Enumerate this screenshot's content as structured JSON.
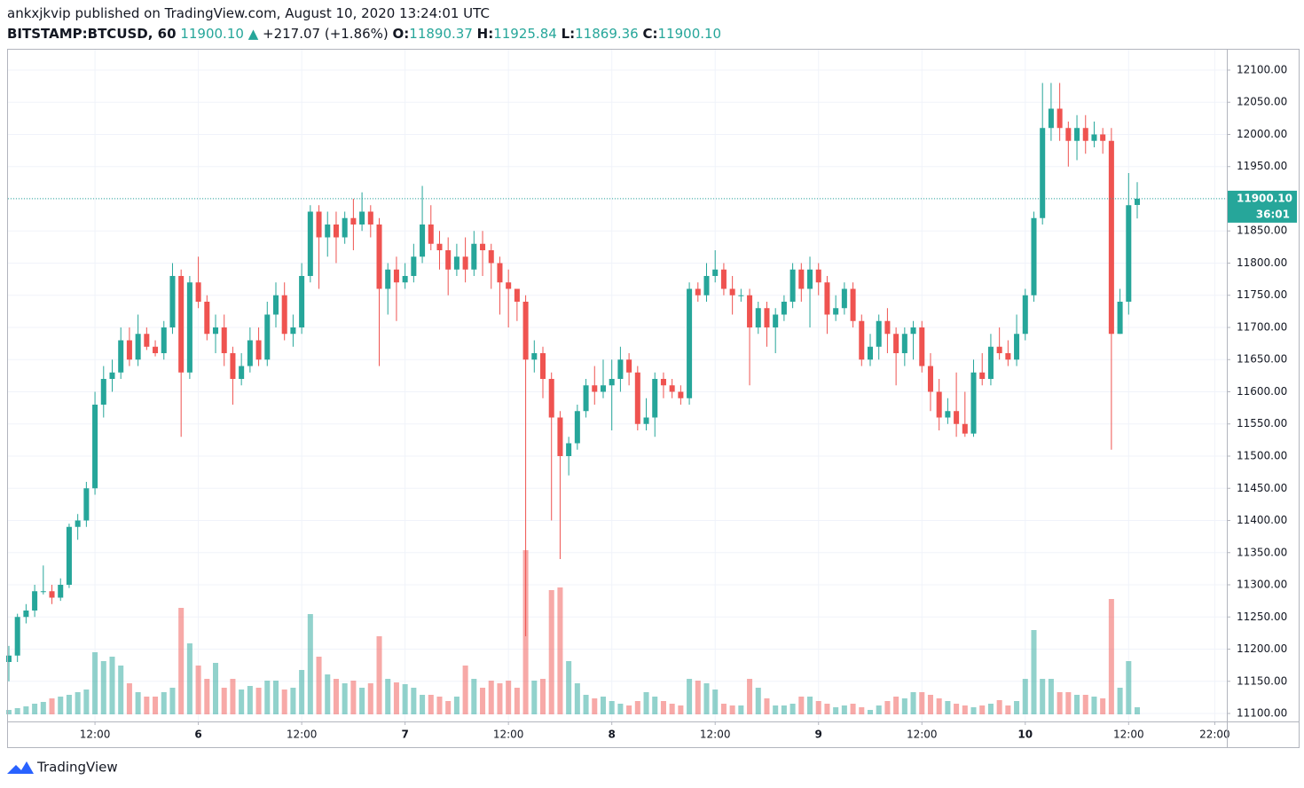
{
  "header": {
    "publisher": "ankxjkvip published on TradingView.com, August 10, 2020 13:24:01 UTC",
    "symbol": "BITSTAMP:BTCUSD, 60",
    "price": "11900.10",
    "change": "+217.07 (+1.86%)",
    "open_label": "O:",
    "open": "11890.37",
    "high_label": "H:",
    "high": "11925.84",
    "low_label": "L:",
    "low": "11869.36",
    "close_label": "C:",
    "close": "11900.10"
  },
  "footer": {
    "brand": "TradingView"
  },
  "chart_data": {
    "type": "candlestick",
    "up_color": "#26a69a",
    "down_color": "#ef5350",
    "current_price_label": "11900.10",
    "countdown": "36:01",
    "ylim": [
      11087.6,
      12131.7
    ],
    "yticks": [
      {
        "value": 11100,
        "label": "11100.00"
      },
      {
        "value": 11150,
        "label": "11150.00"
      },
      {
        "value": 11200,
        "label": "11200.00"
      },
      {
        "value": 11250,
        "label": "11250.00"
      },
      {
        "value": 11300,
        "label": "11300.00"
      },
      {
        "value": 11350,
        "label": "11350.00"
      },
      {
        "value": 11400,
        "label": "11400.00"
      },
      {
        "value": 11450,
        "label": "11450.00"
      },
      {
        "value": 11500,
        "label": "11500.00"
      },
      {
        "value": 11550,
        "label": "11550.00"
      },
      {
        "value": 11600,
        "label": "11600.00"
      },
      {
        "value": 11650,
        "label": "11650.00"
      },
      {
        "value": 11700,
        "label": "11700.00"
      },
      {
        "value": 11750,
        "label": "11750.00"
      },
      {
        "value": 11800,
        "label": "11800.00"
      },
      {
        "value": 11850,
        "label": "11850.00"
      },
      {
        "value": 11900,
        "label": "11900.00"
      },
      {
        "value": 11950,
        "label": "11950.00"
      },
      {
        "value": 12000,
        "label": "12000.00"
      },
      {
        "value": 12050,
        "label": "12050.00"
      },
      {
        "value": 12100,
        "label": "12100.00"
      }
    ],
    "xlim": [
      -0.1,
      141.4
    ],
    "xticks": [
      {
        "value": 10,
        "label": "12:00"
      },
      {
        "value": 22,
        "label": "6"
      },
      {
        "value": 34,
        "label": "12:00"
      },
      {
        "value": 46,
        "label": "7"
      },
      {
        "value": 58,
        "label": "12:00"
      },
      {
        "value": 70,
        "label": "8"
      },
      {
        "value": 82,
        "label": "12:00"
      },
      {
        "value": 94,
        "label": "9"
      },
      {
        "value": 106,
        "label": "12:00"
      },
      {
        "value": 118,
        "label": "10"
      },
      {
        "value": 130,
        "label": "12:00"
      },
      {
        "value": 140,
        "label": "22:00"
      }
    ],
    "grid": true,
    "ohlc": [
      [
        11180,
        11205,
        11150,
        11190
      ],
      [
        11190,
        11255,
        11180,
        11250
      ],
      [
        11250,
        11270,
        11240,
        11260
      ],
      [
        11260,
        11300,
        11250,
        11290
      ],
      [
        11290,
        11330,
        11285,
        11290
      ],
      [
        11290,
        11300,
        11270,
        11280
      ],
      [
        11280,
        11310,
        11275,
        11300
      ],
      [
        11300,
        11395,
        11295,
        11390
      ],
      [
        11390,
        11410,
        11370,
        11400
      ],
      [
        11400,
        11460,
        11390,
        11450
      ],
      [
        11450,
        11600,
        11440,
        11580
      ],
      [
        11580,
        11640,
        11560,
        11620
      ],
      [
        11620,
        11650,
        11600,
        11630
      ],
      [
        11630,
        11700,
        11620,
        11680
      ],
      [
        11680,
        11700,
        11640,
        11650
      ],
      [
        11650,
        11720,
        11640,
        11690
      ],
      [
        11690,
        11700,
        11665,
        11670
      ],
      [
        11670,
        11680,
        11655,
        11660
      ],
      [
        11660,
        11710,
        11650,
        11700
      ],
      [
        11700,
        11800,
        11690,
        11780
      ],
      [
        11780,
        11790,
        11530,
        11630
      ],
      [
        11630,
        11780,
        11620,
        11770
      ],
      [
        11770,
        11810,
        11730,
        11740
      ],
      [
        11740,
        11750,
        11680,
        11690
      ],
      [
        11690,
        11720,
        11660,
        11700
      ],
      [
        11700,
        11720,
        11640,
        11660
      ],
      [
        11660,
        11670,
        11580,
        11620
      ],
      [
        11620,
        11660,
        11610,
        11640
      ],
      [
        11640,
        11700,
        11630,
        11680
      ],
      [
        11680,
        11700,
        11640,
        11650
      ],
      [
        11650,
        11740,
        11640,
        11720
      ],
      [
        11720,
        11770,
        11700,
        11750
      ],
      [
        11750,
        11770,
        11680,
        11690
      ],
      [
        11690,
        11720,
        11670,
        11700
      ],
      [
        11700,
        11800,
        11690,
        11780
      ],
      [
        11780,
        11890,
        11770,
        11880
      ],
      [
        11880,
        11890,
        11760,
        11840
      ],
      [
        11840,
        11880,
        11810,
        11860
      ],
      [
        11860,
        11880,
        11800,
        11840
      ],
      [
        11840,
        11880,
        11830,
        11870
      ],
      [
        11870,
        11900,
        11820,
        11860
      ],
      [
        11860,
        11910,
        11850,
        11880
      ],
      [
        11880,
        11890,
        11840,
        11860
      ],
      [
        11860,
        11870,
        11640,
        11760
      ],
      [
        11760,
        11800,
        11720,
        11790
      ],
      [
        11790,
        11810,
        11710,
        11770
      ],
      [
        11770,
        11800,
        11760,
        11780
      ],
      [
        11780,
        11830,
        11770,
        11810
      ],
      [
        11810,
        11920,
        11800,
        11860
      ],
      [
        11860,
        11890,
        11820,
        11830
      ],
      [
        11830,
        11850,
        11790,
        11820
      ],
      [
        11820,
        11840,
        11750,
        11790
      ],
      [
        11790,
        11830,
        11780,
        11810
      ],
      [
        11810,
        11840,
        11770,
        11790
      ],
      [
        11790,
        11850,
        11780,
        11830
      ],
      [
        11830,
        11850,
        11780,
        11820
      ],
      [
        11820,
        11830,
        11760,
        11800
      ],
      [
        11800,
        11810,
        11720,
        11770
      ],
      [
        11770,
        11790,
        11700,
        11760
      ],
      [
        11760,
        11760,
        11710,
        11740
      ],
      [
        11740,
        11750,
        11220,
        11650
      ],
      [
        11650,
        11680,
        11630,
        11660
      ],
      [
        11660,
        11670,
        11590,
        11620
      ],
      [
        11620,
        11630,
        11400,
        11560
      ],
      [
        11560,
        11570,
        11340,
        11500
      ],
      [
        11500,
        11530,
        11470,
        11520
      ],
      [
        11520,
        11580,
        11510,
        11570
      ],
      [
        11570,
        11620,
        11560,
        11610
      ],
      [
        11610,
        11640,
        11580,
        11600
      ],
      [
        11600,
        11650,
        11590,
        11610
      ],
      [
        11610,
        11650,
        11540,
        11620
      ],
      [
        11620,
        11670,
        11600,
        11650
      ],
      [
        11650,
        11660,
        11610,
        11630
      ],
      [
        11630,
        11640,
        11540,
        11550
      ],
      [
        11550,
        11590,
        11540,
        11560
      ],
      [
        11560,
        11630,
        11530,
        11620
      ],
      [
        11620,
        11630,
        11590,
        11610
      ],
      [
        11610,
        11620,
        11590,
        11600
      ],
      [
        11600,
        11610,
        11580,
        11590
      ],
      [
        11590,
        11770,
        11580,
        11760
      ],
      [
        11760,
        11770,
        11740,
        11750
      ],
      [
        11750,
        11800,
        11740,
        11780
      ],
      [
        11780,
        11820,
        11770,
        11790
      ],
      [
        11790,
        11800,
        11750,
        11760
      ],
      [
        11760,
        11780,
        11720,
        11750
      ],
      [
        11750,
        11760,
        11740,
        11750
      ],
      [
        11750,
        11760,
        11610,
        11700
      ],
      [
        11700,
        11740,
        11690,
        11730
      ],
      [
        11730,
        11740,
        11670,
        11700
      ],
      [
        11700,
        11730,
        11660,
        11720
      ],
      [
        11720,
        11750,
        11710,
        11740
      ],
      [
        11740,
        11800,
        11730,
        11790
      ],
      [
        11790,
        11800,
        11740,
        11760
      ],
      [
        11760,
        11810,
        11700,
        11790
      ],
      [
        11790,
        11800,
        11750,
        11770
      ],
      [
        11770,
        11780,
        11690,
        11720
      ],
      [
        11720,
        11750,
        11710,
        11730
      ],
      [
        11730,
        11770,
        11720,
        11760
      ],
      [
        11760,
        11770,
        11700,
        11710
      ],
      [
        11710,
        11720,
        11640,
        11650
      ],
      [
        11650,
        11690,
        11640,
        11670
      ],
      [
        11670,
        11720,
        11650,
        11710
      ],
      [
        11710,
        11730,
        11660,
        11690
      ],
      [
        11690,
        11700,
        11610,
        11660
      ],
      [
        11660,
        11700,
        11640,
        11690
      ],
      [
        11690,
        11710,
        11650,
        11700
      ],
      [
        11700,
        11710,
        11630,
        11640
      ],
      [
        11640,
        11660,
        11570,
        11600
      ],
      [
        11600,
        11620,
        11540,
        11560
      ],
      [
        11560,
        11590,
        11550,
        11570
      ],
      [
        11570,
        11630,
        11530,
        11550
      ],
      [
        11550,
        11600,
        11530,
        11535
      ],
      [
        11535,
        11650,
        11530,
        11630
      ],
      [
        11630,
        11660,
        11610,
        11620
      ],
      [
        11620,
        11690,
        11610,
        11670
      ],
      [
        11670,
        11700,
        11650,
        11660
      ],
      [
        11660,
        11680,
        11640,
        11650
      ],
      [
        11650,
        11720,
        11640,
        11690
      ],
      [
        11690,
        11760,
        11680,
        11750
      ],
      [
        11750,
        11880,
        11740,
        11870
      ],
      [
        11870,
        12080,
        11860,
        12010
      ],
      [
        12010,
        12080,
        11990,
        12040
      ],
      [
        12040,
        12080,
        11990,
        12010
      ],
      [
        12010,
        12020,
        11950,
        11990
      ],
      [
        11990,
        12030,
        11960,
        12010
      ],
      [
        12010,
        12030,
        11970,
        11990
      ],
      [
        11990,
        12020,
        11980,
        12000
      ],
      [
        12000,
        12010,
        11970,
        11990
      ],
      [
        11990,
        12010,
        11510,
        11690
      ],
      [
        11690,
        11760,
        11690,
        11740
      ],
      [
        11740,
        11940,
        11720,
        11890
      ],
      [
        11890.37,
        11925.84,
        11869.36,
        11900.1
      ]
    ],
    "volume": [
      5,
      7,
      9,
      12,
      14,
      18,
      20,
      22,
      25,
      28,
      70,
      60,
      65,
      55,
      35,
      25,
      20,
      20,
      25,
      30,
      120,
      80,
      55,
      40,
      58,
      30,
      40,
      28,
      32,
      30,
      38,
      38,
      28,
      30,
      50,
      113,
      65,
      45,
      40,
      35,
      38,
      30,
      35,
      88,
      40,
      36,
      34,
      30,
      22,
      22,
      20,
      15,
      20,
      55,
      40,
      30,
      38,
      35,
      38,
      30,
      185,
      38,
      40,
      140,
      143,
      60,
      35,
      22,
      18,
      20,
      15,
      12,
      10,
      15,
      25,
      20,
      15,
      12,
      10,
      40,
      38,
      35,
      28,
      12,
      10,
      10,
      40,
      30,
      18,
      10,
      10,
      12,
      20,
      20,
      15,
      12,
      8,
      10,
      12,
      8,
      5,
      10,
      15,
      20,
      18,
      25,
      25,
      22,
      18,
      15,
      12,
      10,
      8,
      10,
      12,
      16,
      10,
      15,
      40,
      95,
      40,
      40,
      25,
      25,
      22,
      22,
      20,
      18,
      130,
      30,
      60,
      8
    ]
  }
}
